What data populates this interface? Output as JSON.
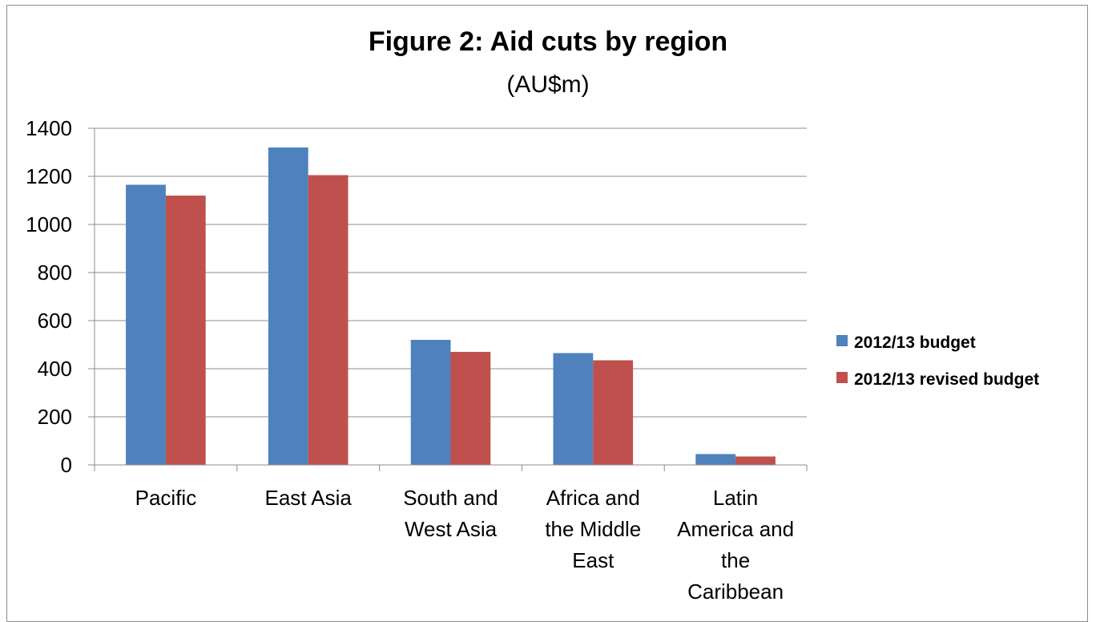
{
  "chart_data": {
    "type": "bar",
    "title": "Figure 2: Aid cuts by region",
    "subtitle": "(AU$m)",
    "xlabel": "",
    "ylabel": "",
    "categories": [
      [
        "Pacific"
      ],
      [
        "East Asia"
      ],
      [
        "South and",
        "West Asia"
      ],
      [
        "Africa and",
        "the Middle",
        "East"
      ],
      [
        "Latin",
        "America and",
        "the",
        "Caribbean"
      ]
    ],
    "series": [
      {
        "name": "2012/13 budget",
        "color": "#4f81bd",
        "values": [
          1165,
          1320,
          520,
          465,
          45
        ]
      },
      {
        "name": "2012/13 revised budget",
        "color": "#c0504d",
        "values": [
          1120,
          1205,
          470,
          435,
          35
        ]
      }
    ],
    "ylim": [
      0,
      1400
    ],
    "yticks": [
      0,
      200,
      400,
      600,
      800,
      1000,
      1200,
      1400
    ],
    "grid": true,
    "legend_position": "right"
  }
}
